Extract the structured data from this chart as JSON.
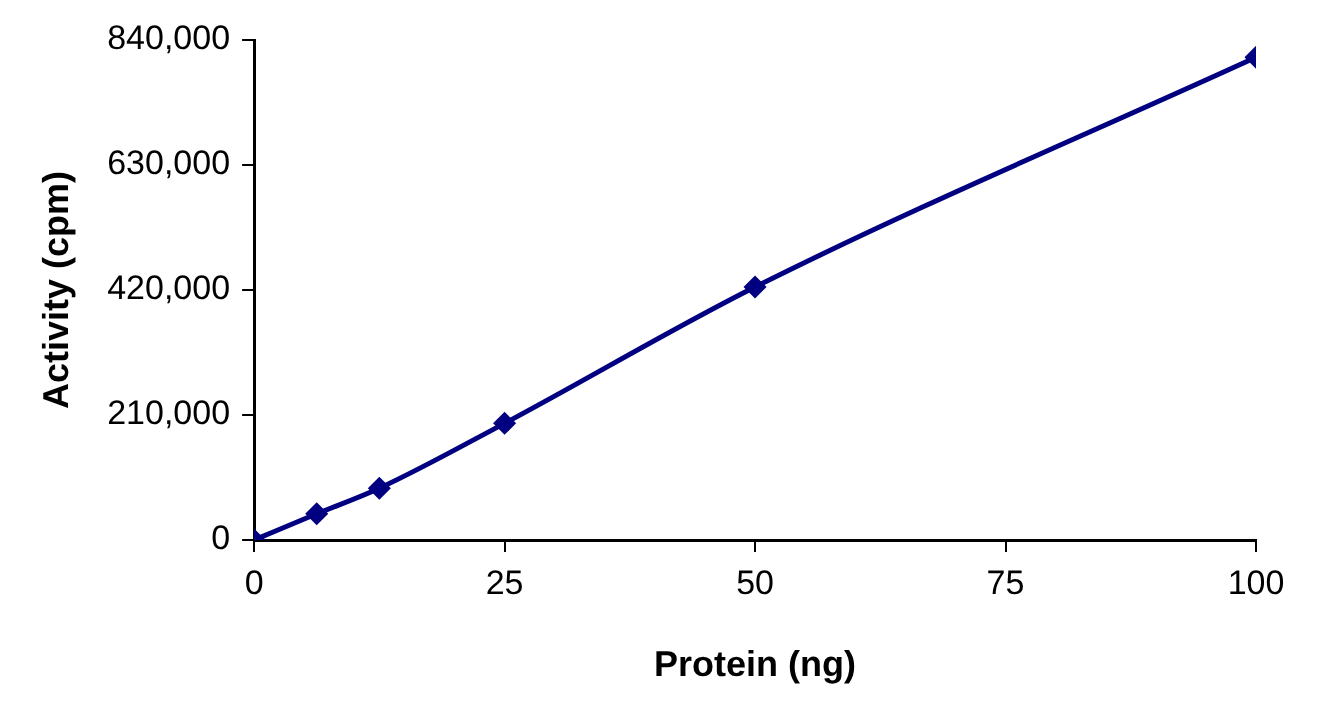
{
  "chart_data": {
    "type": "line",
    "xlabel": "Protein (ng)",
    "ylabel": "Activity (cpm)",
    "x": [
      0,
      6.25,
      12.5,
      25,
      50,
      100
    ],
    "series": [
      {
        "color": "#000080",
        "values": [
          0,
          44000,
          87000,
          196000,
          425000,
          811000
        ]
      }
    ],
    "xlim": [
      0,
      100
    ],
    "xticks": [
      0,
      25,
      50,
      75,
      100
    ],
    "ylim": [
      0,
      840000
    ],
    "yticks": [
      {
        "value": 0,
        "label": "0"
      },
      {
        "value": 210000,
        "label": "210,000"
      },
      {
        "value": 420000,
        "label": "420,000"
      },
      {
        "value": 630000,
        "label": "630,000"
      },
      {
        "value": 840000,
        "label": "840,000"
      }
    ],
    "grid": false,
    "legend": false,
    "marker": "diamond",
    "line_style": "solid"
  }
}
